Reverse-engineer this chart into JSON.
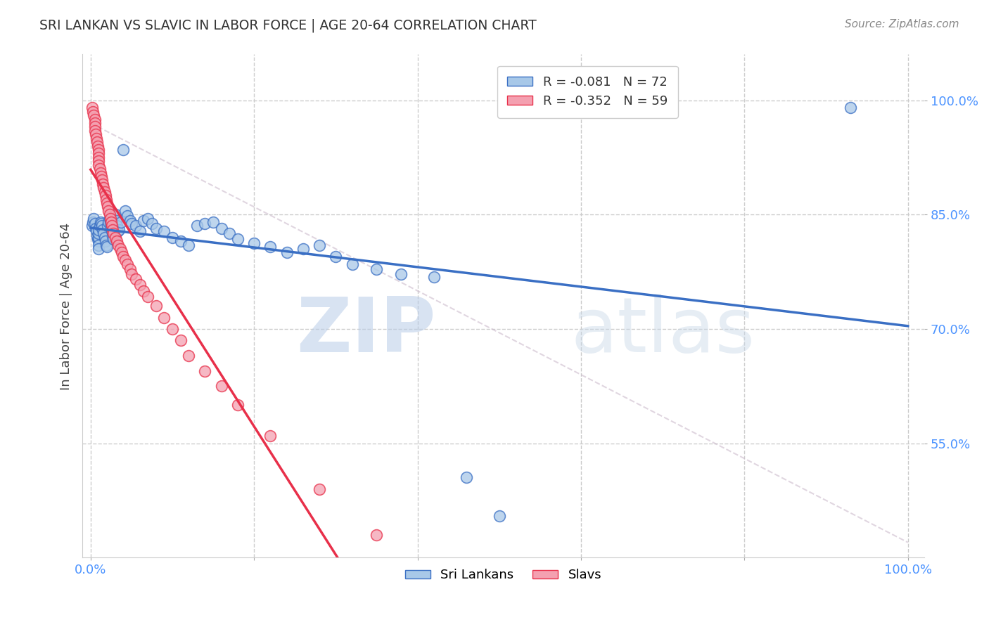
{
  "title": "SRI LANKAN VS SLAVIC IN LABOR FORCE | AGE 20-64 CORRELATION CHART",
  "source": "Source: ZipAtlas.com",
  "ylabel": "In Labor Force | Age 20-64",
  "legend_label1": "Sri Lankans",
  "legend_label2": "Slavs",
  "R1": "-0.081",
  "N1": "72",
  "R2": "-0.352",
  "N2": "59",
  "color_sri": "#a8c8e8",
  "color_slav": "#f4a0b0",
  "color_line_sri": "#3a6fc4",
  "color_line_slav": "#e8304a",
  "color_axis_labels": "#4d94ff",
  "yticks": [
    0.55,
    0.7,
    0.85,
    1.0
  ],
  "ytick_labels": [
    "55.0%",
    "70.0%",
    "85.0%",
    "100.0%"
  ],
  "watermark_zip": "ZIP",
  "watermark_atlas": "atlas",
  "watermark_color": "#c8d8f0",
  "background_color": "#ffffff",
  "grid_color": "#cccccc",
  "sri_x": [
    0.002,
    0.003,
    0.004,
    0.005,
    0.006,
    0.007,
    0.008,
    0.009,
    0.01,
    0.01,
    0.01,
    0.01,
    0.01,
    0.01,
    0.011,
    0.012,
    0.013,
    0.014,
    0.015,
    0.016,
    0.017,
    0.018,
    0.019,
    0.02,
    0.021,
    0.022,
    0.023,
    0.024,
    0.025,
    0.026,
    0.027,
    0.028,
    0.03,
    0.031,
    0.032,
    0.033,
    0.035,
    0.037,
    0.04,
    0.042,
    0.045,
    0.048,
    0.05,
    0.055,
    0.06,
    0.065,
    0.07,
    0.075,
    0.08,
    0.09,
    0.1,
    0.11,
    0.12,
    0.13,
    0.14,
    0.15,
    0.16,
    0.17,
    0.18,
    0.2,
    0.22,
    0.24,
    0.26,
    0.28,
    0.3,
    0.32,
    0.35,
    0.38,
    0.42,
    0.46,
    0.5,
    0.93
  ],
  "sri_y": [
    0.835,
    0.84,
    0.845,
    0.838,
    0.832,
    0.828,
    0.822,
    0.818,
    0.815,
    0.82,
    0.825,
    0.83,
    0.81,
    0.805,
    0.835,
    0.84,
    0.838,
    0.835,
    0.83,
    0.825,
    0.82,
    0.815,
    0.81,
    0.808,
    0.835,
    0.84,
    0.845,
    0.838,
    0.832,
    0.828,
    0.822,
    0.818,
    0.85,
    0.842,
    0.835,
    0.828,
    0.83,
    0.84,
    0.935,
    0.855,
    0.848,
    0.842,
    0.838,
    0.835,
    0.828,
    0.842,
    0.845,
    0.838,
    0.832,
    0.828,
    0.82,
    0.815,
    0.81,
    0.835,
    0.838,
    0.84,
    0.832,
    0.825,
    0.818,
    0.812,
    0.808,
    0.8,
    0.805,
    0.81,
    0.795,
    0.785,
    0.778,
    0.772,
    0.768,
    0.505,
    0.455,
    0.99
  ],
  "slav_x": [
    0.002,
    0.003,
    0.004,
    0.005,
    0.005,
    0.005,
    0.005,
    0.006,
    0.007,
    0.008,
    0.009,
    0.01,
    0.01,
    0.01,
    0.01,
    0.01,
    0.011,
    0.012,
    0.013,
    0.014,
    0.015,
    0.016,
    0.017,
    0.018,
    0.019,
    0.02,
    0.021,
    0.022,
    0.023,
    0.024,
    0.025,
    0.026,
    0.027,
    0.028,
    0.03,
    0.032,
    0.034,
    0.036,
    0.038,
    0.04,
    0.042,
    0.045,
    0.048,
    0.05,
    0.055,
    0.06,
    0.065,
    0.07,
    0.08,
    0.09,
    0.1,
    0.11,
    0.12,
    0.14,
    0.16,
    0.18,
    0.22,
    0.28,
    0.35
  ],
  "slav_y": [
    0.99,
    0.985,
    0.98,
    0.975,
    0.97,
    0.965,
    0.96,
    0.955,
    0.95,
    0.945,
    0.94,
    0.935,
    0.93,
    0.925,
    0.92,
    0.915,
    0.91,
    0.905,
    0.9,
    0.895,
    0.89,
    0.885,
    0.88,
    0.875,
    0.87,
    0.865,
    0.86,
    0.855,
    0.85,
    0.845,
    0.84,
    0.835,
    0.83,
    0.825,
    0.82,
    0.815,
    0.81,
    0.805,
    0.8,
    0.795,
    0.79,
    0.785,
    0.778,
    0.772,
    0.765,
    0.758,
    0.75,
    0.742,
    0.73,
    0.715,
    0.7,
    0.685,
    0.665,
    0.645,
    0.625,
    0.6,
    0.56,
    0.49,
    0.43
  ]
}
